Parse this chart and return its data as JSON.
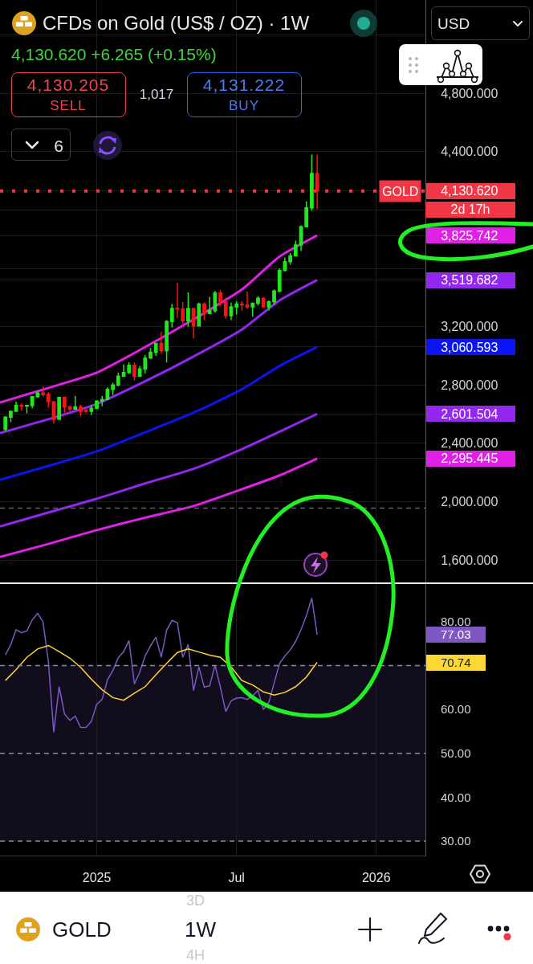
{
  "chart_data": [
    {
      "type": "candlestick",
      "title": "CFDs on Gold (US$ / OZ) · 1W",
      "subtitle": "4,130.620 +6.265 (+0.15%)",
      "x": [
        "2024-09-09",
        "2024-09-16",
        "2024-09-23",
        "2024-09-30",
        "2024-10-07",
        "2024-10-14",
        "2024-10-21",
        "2024-10-28",
        "2024-11-04",
        "2024-11-11",
        "2024-11-18",
        "2024-11-25",
        "2024-12-02",
        "2024-12-09",
        "2024-12-16",
        "2024-12-23",
        "2024-12-30",
        "2025-01-06",
        "2025-01-13",
        "2025-01-20",
        "2025-01-27",
        "2025-02-03",
        "2025-02-10",
        "2025-02-17",
        "2025-02-24",
        "2025-03-03",
        "2025-03-10",
        "2025-03-17",
        "2025-03-24",
        "2025-03-31",
        "2025-04-07",
        "2025-04-14",
        "2025-04-21",
        "2025-04-28",
        "2025-05-05",
        "2025-05-12",
        "2025-05-19",
        "2025-05-26",
        "2025-06-02",
        "2025-06-09",
        "2025-06-16",
        "2025-06-23",
        "2025-06-30",
        "2025-07-07",
        "2025-07-14",
        "2025-07-21",
        "2025-07-28",
        "2025-08-04",
        "2025-08-11",
        "2025-08-18",
        "2025-08-25",
        "2025-09-01",
        "2025-09-08",
        "2025-09-15",
        "2025-09-22",
        "2025-09-29",
        "2025-10-06",
        "2025-10-13",
        "2025-10-20"
      ],
      "ohlc": [
        [
          2495,
          2585,
          2485,
          2580
        ],
        [
          2580,
          2625,
          2545,
          2620
        ],
        [
          2620,
          2685,
          2615,
          2660
        ],
        [
          2660,
          2675,
          2625,
          2655
        ],
        [
          2655,
          2665,
          2605,
          2660
        ],
        [
          2660,
          2720,
          2640,
          2720
        ],
        [
          2720,
          2760,
          2710,
          2745
        ],
        [
          2745,
          2790,
          2720,
          2735
        ],
        [
          2735,
          2750,
          2645,
          2685
        ],
        [
          2685,
          2690,
          2535,
          2565
        ],
        [
          2565,
          2720,
          2565,
          2715
        ],
        [
          2715,
          2720,
          2605,
          2650
        ],
        [
          2650,
          2660,
          2615,
          2635
        ],
        [
          2635,
          2725,
          2630,
          2650
        ],
        [
          2650,
          2665,
          2585,
          2620
        ],
        [
          2625,
          2640,
          2605,
          2620
        ],
        [
          2620,
          2665,
          2595,
          2640
        ],
        [
          2640,
          2695,
          2635,
          2690
        ],
        [
          2690,
          2725,
          2655,
          2700
        ],
        [
          2700,
          2785,
          2700,
          2770
        ],
        [
          2770,
          2815,
          2730,
          2800
        ],
        [
          2800,
          2885,
          2790,
          2860
        ],
        [
          2860,
          2940,
          2860,
          2885
        ],
        [
          2885,
          2955,
          2875,
          2935
        ],
        [
          2935,
          2955,
          2830,
          2860
        ],
        [
          2860,
          2930,
          2860,
          2910
        ],
        [
          2910,
          3005,
          2880,
          2985
        ],
        [
          2985,
          3055,
          2980,
          3025
        ],
        [
          3025,
          3085,
          3000,
          3085
        ],
        [
          3085,
          3165,
          3015,
          3035
        ],
        [
          3035,
          3245,
          2955,
          3235
        ],
        [
          3235,
          3355,
          3195,
          3325
        ],
        [
          3325,
          3500,
          3260,
          3320
        ],
        [
          3320,
          3370,
          3200,
          3240
        ],
        [
          3240,
          3435,
          3200,
          3325
        ],
        [
          3325,
          3325,
          3120,
          3205
        ],
        [
          3205,
          3365,
          3205,
          3355
        ],
        [
          3355,
          3365,
          3245,
          3290
        ],
        [
          3290,
          3405,
          3285,
          3310
        ],
        [
          3310,
          3445,
          3295,
          3430
        ],
        [
          3430,
          3450,
          3340,
          3370
        ],
        [
          3370,
          3400,
          3255,
          3275
        ],
        [
          3275,
          3365,
          3245,
          3335
        ],
        [
          3335,
          3375,
          3285,
          3355
        ],
        [
          3355,
          3375,
          3310,
          3350
        ],
        [
          3350,
          3440,
          3325,
          3335
        ],
        [
          3335,
          3365,
          3270,
          3360
        ],
        [
          3360,
          3410,
          3345,
          3395
        ],
        [
          3395,
          3400,
          3330,
          3335
        ],
        [
          3335,
          3380,
          3310,
          3370
        ],
        [
          3370,
          3455,
          3350,
          3445
        ],
        [
          3445,
          3600,
          3435,
          3585
        ],
        [
          3585,
          3675,
          3580,
          3645
        ],
        [
          3645,
          3705,
          3625,
          3685
        ],
        [
          3685,
          3790,
          3685,
          3760
        ],
        [
          3760,
          3895,
          3720,
          3885
        ],
        [
          3885,
          4060,
          3885,
          4015
        ],
        [
          4015,
          4380,
          3995,
          4250
        ],
        [
          4250,
          4380,
          4005,
          4130.62
        ]
      ],
      "colors": [
        "#1ee81e",
        "#1ee81e",
        "#1ee81e",
        "#f2161b",
        "#1ee81e",
        "#1ee81e",
        "#1ee81e",
        "#f2161b",
        "#f2161b",
        "#f2161b",
        "#1ee81e",
        "#f2161b",
        "#f2161b",
        "#1ee81e",
        "#f2161b",
        "#f2161b",
        "#1ee81e",
        "#1ee81e",
        "#1ee81e",
        "#1ee81e",
        "#1ee81e",
        "#1ee81e",
        "#1ee81e",
        "#1ee81e",
        "#f2161b",
        "#1ee81e",
        "#1ee81e",
        "#1ee81e",
        "#1ee81e",
        "#f2161b",
        "#1ee81e",
        "#1ee81e",
        "#f2161b",
        "#f2161b",
        "#1ee81e",
        "#f2161b",
        "#1ee81e",
        "#f2161b",
        "#1ee81e",
        "#1ee81e",
        "#f2161b",
        "#f2161b",
        "#1ee81e",
        "#1ee81e",
        "#f2161b",
        "#f2161b",
        "#1ee81e",
        "#1ee81e",
        "#f2161b",
        "#1ee81e",
        "#1ee81e",
        "#1ee81e",
        "#1ee81e",
        "#1ee81e",
        "#1ee81e",
        "#1ee81e",
        "#1ee81e",
        "#1ee81e",
        "#f2161b"
      ],
      "series": [
        {
          "type": "line",
          "color": "#e020e6",
          "x": [
            "2024-09-02",
            "2024-11-04",
            "2025-01-06",
            "2025-03-10",
            "2025-05-12",
            "2025-07-14",
            "2025-09-01",
            "2025-10-20"
          ],
          "values": [
            2680,
            2780,
            2885,
            3060,
            3250,
            3455,
            3680,
            3825.742
          ]
        },
        {
          "type": "line",
          "color": "#9327ef",
          "x": [
            "2024-09-02",
            "2024-11-04",
            "2025-01-06",
            "2025-03-10",
            "2025-05-12",
            "2025-07-14",
            "2025-09-01",
            "2025-10-20"
          ],
          "values": [
            2470,
            2565,
            2670,
            2825,
            2995,
            3180,
            3380,
            3519.682
          ]
        },
        {
          "type": "line",
          "color": "#0d14f2",
          "x": [
            "2024-09-02",
            "2024-11-04",
            "2025-01-06",
            "2025-03-10",
            "2025-05-12",
            "2025-07-14",
            "2025-09-01",
            "2025-10-20"
          ],
          "values": [
            2150,
            2245,
            2345,
            2475,
            2610,
            2770,
            2930,
            3060.593
          ]
        },
        {
          "type": "line",
          "color": "#9327ef",
          "x": [
            "2024-09-02",
            "2024-11-04",
            "2025-01-06",
            "2025-03-10",
            "2025-05-12",
            "2025-07-14",
            "2025-09-01",
            "2025-10-20"
          ],
          "values": [
            1830,
            1925,
            2020,
            2125,
            2225,
            2360,
            2480,
            2601.504
          ]
        },
        {
          "type": "line",
          "color": "#e020e6",
          "x": [
            "2024-09-02",
            "2024-11-04",
            "2025-01-06",
            "2025-03-10",
            "2025-05-12",
            "2025-07-14",
            "2025-09-01",
            "2025-10-20"
          ],
          "values": [
            1620,
            1710,
            1805,
            1890,
            1970,
            2085,
            2180,
            2295.445
          ]
        }
      ],
      "xlim": [
        "2024-09-02",
        "2026-03-10"
      ],
      "xticks": [
        {
          "value": "2025-01-06",
          "label": null
        },
        {
          "value": "2025-07-07",
          "label": null
        },
        {
          "value": "2026-01-05",
          "label": null
        }
      ],
      "ylim": [
        1446,
        5440
      ],
      "yticks": [
        {
          "value": 1600,
          "label": "1,600.000"
        },
        {
          "value": 2000,
          "label": "2,000.000"
        },
        {
          "value": 2295.445,
          "label": "2,295.445"
        },
        {
          "value": 2400,
          "label": "2,400.000"
        },
        {
          "value": 2601.504,
          "label": "2,601.504"
        },
        {
          "value": 2800,
          "label": "2,800.000"
        },
        {
          "value": 3060.593,
          "label": "3,060.593"
        },
        {
          "value": 3200,
          "label": "3,200.000"
        },
        {
          "value": 3519.682,
          "label": "3,519.682"
        },
        {
          "value": 3600,
          "label": null
        },
        {
          "value": 3825.742,
          "label": "3,825.742"
        },
        {
          "value": 4000,
          "label": null
        },
        {
          "value": 4130.62,
          "label": "4,130.620"
        },
        {
          "value": 4400,
          "label": "4,400.000"
        },
        {
          "value": 4800,
          "label": "4,800.000"
        },
        {
          "value": 5200,
          "label": null
        }
      ],
      "tick_labels": "y",
      "grid": true,
      "ref_lines": [
        {
          "axis": "y",
          "value": 4130.62,
          "label": "GOLD",
          "color": "#f23645",
          "line_style": "dotted"
        },
        {
          "axis": "y",
          "value": 1955,
          "color": "#5d6470",
          "line_style": "dashed"
        }
      ],
      "annotations": [
        "2d 17h",
        "4,130.205",
        "SELL",
        "1,017",
        "4,131.222",
        "BUY",
        "6",
        "USD"
      ]
    },
    {
      "type": "line",
      "x": [
        "2024-09-09",
        "2024-09-16",
        "2024-09-23",
        "2024-09-30",
        "2024-10-07",
        "2024-10-14",
        "2024-10-21",
        "2024-10-28",
        "2024-11-04",
        "2024-11-11",
        "2024-11-18",
        "2024-11-25",
        "2024-12-02",
        "2024-12-09",
        "2024-12-16",
        "2024-12-23",
        "2024-12-30",
        "2025-01-06",
        "2025-01-13",
        "2025-01-20",
        "2025-01-27",
        "2025-02-03",
        "2025-02-10",
        "2025-02-17",
        "2025-02-24",
        "2025-03-03",
        "2025-03-10",
        "2025-03-17",
        "2025-03-24",
        "2025-03-31",
        "2025-04-07",
        "2025-04-14",
        "2025-04-21",
        "2025-04-28",
        "2025-05-05",
        "2025-05-12",
        "2025-05-19",
        "2025-05-26",
        "2025-06-02",
        "2025-06-09",
        "2025-06-16",
        "2025-06-23",
        "2025-06-30",
        "2025-07-07",
        "2025-07-14",
        "2025-07-21",
        "2025-07-28",
        "2025-08-04",
        "2025-08-11",
        "2025-08-18",
        "2025-08-25",
        "2025-09-01",
        "2025-09-08",
        "2025-09-15",
        "2025-09-22",
        "2025-09-29",
        "2025-10-06",
        "2025-10-13",
        "2025-10-20"
      ],
      "series": [
        {
          "color": "#7e57c2",
          "values": [
            72.4,
            74.8,
            78.2,
            77.5,
            77.9,
            80.4,
            81.9,
            80.0,
            70.9,
            54.8,
            65.2,
            59.0,
            57.5,
            58.5,
            55.9,
            55.9,
            57.3,
            61.2,
            62.3,
            66.8,
            68.9,
            71.8,
            73.2,
            75.7,
            65.8,
            68.5,
            72.2,
            74.5,
            76.5,
            71.9,
            78.1,
            80.3,
            79.8,
            71.9,
            74.8,
            64.3,
            69.7,
            65.1,
            65.4,
            70.1,
            65.1,
            59.5,
            62.0,
            62.6,
            62.7,
            62.3,
            63.1,
            64.4,
            60.0,
            61.6,
            66.0,
            70.5,
            72.2,
            73.6,
            75.5,
            78.2,
            81.4,
            85.4,
            77.03
          ]
        },
        {
          "color": "#fdd835",
          "x": [
            "2024-09-09",
            "2024-09-23",
            "2024-10-07",
            "2024-10-21",
            "2024-11-04",
            "2024-11-18",
            "2024-12-02",
            "2024-12-16",
            "2024-12-30",
            "2025-01-13",
            "2025-01-27",
            "2025-02-10",
            "2025-02-24",
            "2025-03-10",
            "2025-03-24",
            "2025-04-07",
            "2025-04-21",
            "2025-05-05",
            "2025-05-19",
            "2025-06-02",
            "2025-06-16",
            "2025-06-30",
            "2025-07-14",
            "2025-07-28",
            "2025-08-11",
            "2025-08-25",
            "2025-09-08",
            "2025-09-22",
            "2025-10-06",
            "2025-10-13",
            "2025-10-20"
          ],
          "values": [
            66.6,
            69.1,
            71.9,
            73.8,
            74.6,
            73.2,
            71.7,
            69.6,
            66.9,
            64.5,
            62.7,
            62.1,
            63.7,
            65.2,
            67.9,
            70.5,
            73.0,
            73.8,
            73.1,
            72.4,
            71.9,
            69.7,
            66.6,
            65.6,
            64.0,
            63.3,
            63.9,
            65.2,
            67.4,
            69.1,
            70.74
          ]
        }
      ],
      "xlim": [
        "2024-09-02",
        "2026-03-10"
      ],
      "xticks": [
        {
          "value": "2025-01-06",
          "label": "2025"
        },
        {
          "value": "2025-07-07",
          "label": "Jul"
        },
        {
          "value": "2026-01-05",
          "label": "2026"
        }
      ],
      "ylim": [
        26.7,
        88.6
      ],
      "yticks": [
        {
          "value": 30,
          "label": "30.00"
        },
        {
          "value": 40,
          "label": "40.00"
        },
        {
          "value": 50,
          "label": "50.00"
        },
        {
          "value": 60,
          "label": "60.00"
        },
        {
          "value": 70.74,
          "label": "70.74"
        },
        {
          "value": 77.03,
          "label": "77.03"
        },
        {
          "value": 80,
          "label": "80.00"
        }
      ],
      "grid": "x",
      "ref_lines": [
        {
          "axis": "y",
          "value": 70,
          "color": "#8a8d96",
          "line_style": "dashed"
        },
        {
          "axis": "y",
          "value": 50,
          "color": "#8a8d96",
          "line_style": "dashed"
        },
        {
          "axis": "y",
          "value": 30,
          "color": "#8a8d96",
          "line_style": "dashed"
        }
      ],
      "bands": [
        {
          "axis": "y",
          "from": 30,
          "to": 70,
          "color": "#110d1d"
        }
      ],
      "annotations": [
        "GOLD",
        "1W",
        "3D",
        "4H"
      ]
    }
  ]
}
